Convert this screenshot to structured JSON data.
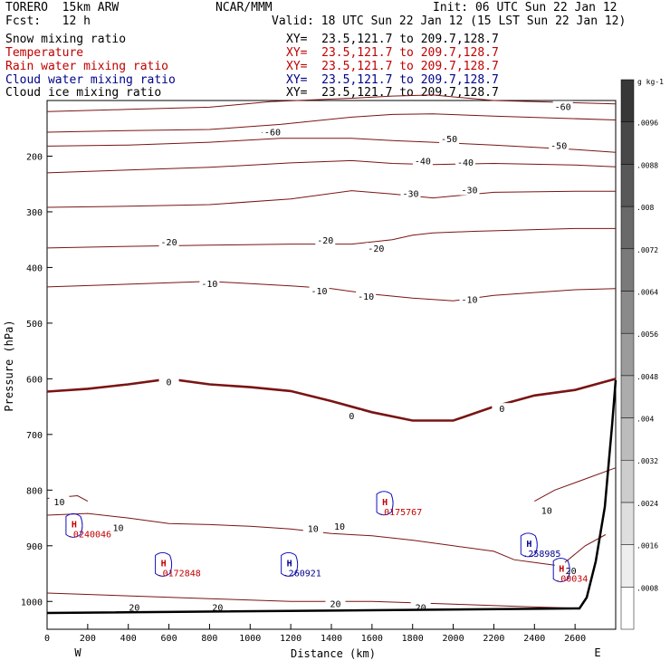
{
  "header": {
    "model": "TORERO  15km ARW",
    "center": "NCAR/MMM",
    "init": "Init: 06 UTC Sun 22 Jan 12",
    "fcst": "Fcst:   12 h",
    "valid": "Valid: 18 UTC Sun 22 Jan 12 (15 LST Sun 22 Jan 12)"
  },
  "fields": [
    {
      "name": "Snow mixing ratio",
      "xy": "XY=  23.5,121.7 to 209.7,128.7",
      "color": "#000000"
    },
    {
      "name": "Temperature",
      "xy": "XY=  23.5,121.7 to 209.7,128.7",
      "color": "#c00000"
    },
    {
      "name": "Rain water mixing ratio",
      "xy": "XY=  23.5,121.7 to 209.7,128.7",
      "color": "#c00000"
    },
    {
      "name": "Cloud water mixing ratio",
      "xy": "XY=  23.5,121.7 to 209.7,128.7",
      "color": "#00008b"
    },
    {
      "name": "Cloud ice mixing ratio",
      "xy": "XY=  23.5,121.7 to 209.7,128.7",
      "color": "#000000"
    }
  ],
  "chart_data": {
    "type": "cross-section",
    "xlabel": "Distance (km)",
    "ylabel": "Pressure (hPa)",
    "xlim": [
      0,
      2800
    ],
    "ylim": [
      1050,
      100
    ],
    "xticks": [
      0,
      200,
      400,
      600,
      800,
      1000,
      1200,
      1400,
      1600,
      1800,
      2000,
      2200,
      2400,
      2600
    ],
    "yticks": [
      200,
      300,
      400,
      500,
      600,
      700,
      800,
      900,
      1000
    ],
    "x_end_labels": {
      "left": "W",
      "right": "E"
    },
    "temperature_contours": [
      {
        "level": -60,
        "points": [
          [
            0,
            120
          ],
          [
            400,
            116
          ],
          [
            800,
            112
          ],
          [
            1100,
            102
          ],
          [
            1500,
            96
          ],
          [
            1700,
            92
          ],
          [
            1900,
            90
          ],
          [
            2200,
            100
          ],
          [
            2600,
            104
          ],
          [
            2800,
            106
          ]
        ],
        "labels": [
          [
            1090,
            158
          ],
          [
            2540,
            112
          ]
        ]
      },
      {
        "level": -60,
        "points": [
          [
            0,
            157
          ],
          [
            400,
            154
          ],
          [
            800,
            152
          ],
          [
            1150,
            143
          ],
          [
            1500,
            130
          ],
          [
            1700,
            125
          ],
          [
            1900,
            124
          ],
          [
            2200,
            128
          ],
          [
            2800,
            135
          ]
        ],
        "labels": [
          [
            1110,
            158
          ]
        ]
      },
      {
        "level": -50,
        "points": [
          [
            0,
            182
          ],
          [
            400,
            180
          ],
          [
            800,
            175
          ],
          [
            1150,
            168
          ],
          [
            1500,
            168
          ],
          [
            1700,
            172
          ],
          [
            1900,
            175
          ],
          [
            2200,
            180
          ],
          [
            2600,
            188
          ],
          [
            2800,
            193
          ]
        ],
        "labels": [
          [
            1980,
            170
          ],
          [
            2520,
            182
          ]
        ]
      },
      {
        "level": -40,
        "points": [
          [
            0,
            230
          ],
          [
            400,
            225
          ],
          [
            800,
            220
          ],
          [
            1200,
            212
          ],
          [
            1500,
            208
          ],
          [
            1700,
            213
          ],
          [
            1900,
            215
          ],
          [
            2200,
            213
          ],
          [
            2600,
            216
          ],
          [
            2800,
            219
          ]
        ],
        "labels": [
          [
            1850,
            210
          ],
          [
            2060,
            212
          ]
        ]
      },
      {
        "level": -30,
        "points": [
          [
            0,
            292
          ],
          [
            400,
            290
          ],
          [
            800,
            287
          ],
          [
            1200,
            277
          ],
          [
            1500,
            262
          ],
          [
            1700,
            268
          ],
          [
            1900,
            275
          ],
          [
            2200,
            265
          ],
          [
            2600,
            263
          ],
          [
            2800,
            263
          ]
        ],
        "labels": [
          [
            1790,
            268
          ],
          [
            2080,
            262
          ]
        ]
      },
      {
        "level": -20,
        "points": [
          [
            0,
            365
          ],
          [
            400,
            362
          ],
          [
            800,
            360
          ],
          [
            1200,
            358
          ],
          [
            1500,
            358
          ],
          [
            1700,
            350
          ],
          [
            1800,
            342
          ],
          [
            1900,
            338
          ],
          [
            2100,
            335
          ],
          [
            2600,
            330
          ],
          [
            2800,
            330
          ]
        ],
        "labels": [
          [
            600,
            355
          ],
          [
            1370,
            352
          ],
          [
            1620,
            367
          ]
        ]
      },
      {
        "level": -10,
        "points": [
          [
            0,
            435
          ],
          [
            400,
            430
          ],
          [
            800,
            425
          ],
          [
            1200,
            433
          ],
          [
            1400,
            438
          ],
          [
            1600,
            448
          ],
          [
            1800,
            455
          ],
          [
            2000,
            460
          ],
          [
            2200,
            450
          ],
          [
            2600,
            440
          ],
          [
            2800,
            438
          ]
        ],
        "labels": [
          [
            800,
            430
          ],
          [
            1340,
            443
          ],
          [
            1570,
            453
          ],
          [
            2080,
            459
          ]
        ]
      },
      {
        "level": 0,
        "points": [
          [
            0,
            623
          ],
          [
            200,
            618
          ],
          [
            400,
            610
          ],
          [
            600,
            600
          ],
          [
            800,
            610
          ],
          [
            1000,
            615
          ],
          [
            1200,
            622
          ],
          [
            1400,
            640
          ],
          [
            1600,
            660
          ],
          [
            1800,
            675
          ],
          [
            2000,
            675
          ],
          [
            2200,
            650
          ],
          [
            2400,
            630
          ],
          [
            2600,
            620
          ],
          [
            2800,
            600
          ]
        ],
        "labels": [
          [
            600,
            607
          ],
          [
            1500,
            668
          ],
          [
            2240,
            655
          ]
        ]
      },
      {
        "level": 10,
        "points": [
          [
            0,
            845
          ],
          [
            200,
            842
          ],
          [
            400,
            850
          ],
          [
            600,
            860
          ],
          [
            800,
            862
          ],
          [
            1000,
            865
          ],
          [
            1200,
            870
          ],
          [
            1400,
            878
          ],
          [
            1600,
            882
          ],
          [
            1800,
            890
          ],
          [
            2000,
            900
          ],
          [
            2200,
            910
          ],
          [
            2300,
            925
          ],
          [
            2400,
            930
          ],
          [
            2500,
            935
          ]
        ],
        "labels": [
          [
            350,
            869
          ],
          [
            1310,
            870
          ],
          [
            1440,
            866
          ]
        ]
      },
      {
        "level": 20,
        "points": [
          [
            0,
            985
          ],
          [
            400,
            990
          ],
          [
            800,
            995
          ],
          [
            1200,
            1000
          ],
          [
            1600,
            1000
          ],
          [
            2000,
            1005
          ],
          [
            2400,
            1010
          ],
          [
            2600,
            1012
          ]
        ],
        "labels": [
          [
            430,
            1012
          ],
          [
            840,
            1012
          ],
          [
            1420,
            1005
          ],
          [
            1840,
            1012
          ]
        ]
      },
      {
        "level": 10,
        "points": [
          [
            0,
            815
          ],
          [
            150,
            810
          ],
          [
            200,
            820
          ]
        ],
        "labels": [
          [
            60,
            822
          ]
        ]
      },
      {
        "level": 10,
        "points": [
          [
            2400,
            820
          ],
          [
            2500,
            800
          ],
          [
            2650,
            780
          ],
          [
            2800,
            760
          ]
        ],
        "labels": [
          [
            2460,
            838
          ]
        ]
      },
      {
        "level": 20,
        "points": [
          [
            2550,
            930
          ],
          [
            2650,
            900
          ],
          [
            2750,
            880
          ]
        ],
        "labels": [
          [
            2580,
            946
          ]
        ]
      }
    ],
    "cloud_water_markers": [
      {
        "x": 120,
        "p": 870,
        "label": "H",
        "value": ".0240046",
        "color": "#c00000"
      },
      {
        "x": 560,
        "p": 940,
        "label": "H",
        "value": ".0172848",
        "color": "#c00000"
      },
      {
        "x": 1180,
        "p": 940,
        "label": "H",
        "value": ".260921",
        "color": "#00008b"
      },
      {
        "x": 1650,
        "p": 830,
        "label": "H",
        "value": ".0175767",
        "color": "#c00000"
      },
      {
        "x": 2360,
        "p": 905,
        "label": "H",
        "value": ".258985",
        "color": "#00008b"
      },
      {
        "x": 2520,
        "p": 950,
        "label": "H",
        "value": ".00034",
        "color": "#c00000"
      }
    ],
    "color_scale": {
      "unit": "g kg-1",
      "levels": [
        0.0008,
        0.0016,
        0.0024,
        0.0032,
        0.004,
        0.0048,
        0.0056,
        0.0064,
        0.0072,
        0.008,
        0.0088,
        0.0096
      ]
    }
  }
}
